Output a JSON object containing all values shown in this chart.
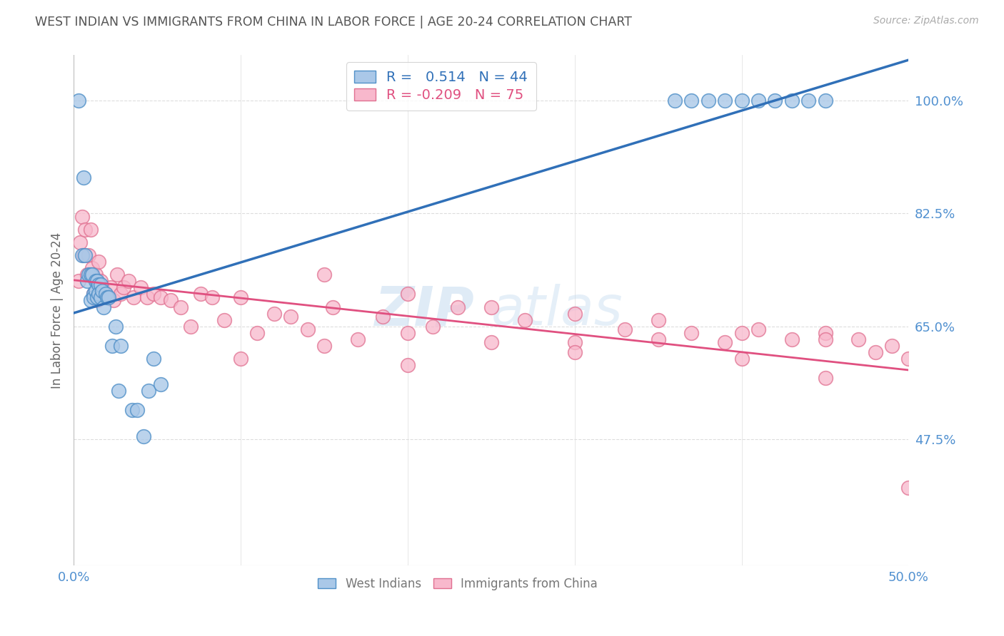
{
  "title": "WEST INDIAN VS IMMIGRANTS FROM CHINA IN LABOR FORCE | AGE 20-24 CORRELATION CHART",
  "source": "Source: ZipAtlas.com",
  "ylabel": "In Labor Force | Age 20-24",
  "ytick_labels": [
    "100.0%",
    "82.5%",
    "65.0%",
    "47.5%"
  ],
  "ytick_values": [
    1.0,
    0.825,
    0.65,
    0.475
  ],
  "xlim": [
    0.0,
    0.5
  ],
  "ylim": [
    0.28,
    1.07
  ],
  "watermark_line1": "ZIP",
  "watermark_line2": "atlas",
  "blue_R": "0.514",
  "blue_N": "44",
  "pink_R": "-0.209",
  "pink_N": "75",
  "blue_face_color": "#aac8e8",
  "blue_edge_color": "#5090c8",
  "blue_line_color": "#3070b8",
  "pink_face_color": "#f8b8cc",
  "pink_edge_color": "#e07090",
  "pink_line_color": "#e05080",
  "axis_label_color": "#5090d0",
  "title_color": "#555555",
  "source_color": "#aaaaaa",
  "grid_color": "#dddddd",
  "west_indians_x": [
    0.003,
    0.005,
    0.006,
    0.007,
    0.008,
    0.009,
    0.01,
    0.01,
    0.011,
    0.012,
    0.012,
    0.013,
    0.013,
    0.014,
    0.014,
    0.015,
    0.015,
    0.016,
    0.016,
    0.017,
    0.018,
    0.019,
    0.02,
    0.021,
    0.023,
    0.025,
    0.027,
    0.028,
    0.035,
    0.038,
    0.042,
    0.045,
    0.048,
    0.052,
    0.36,
    0.37,
    0.38,
    0.39,
    0.4,
    0.41,
    0.42,
    0.43,
    0.44,
    0.45
  ],
  "west_indians_y": [
    1.0,
    0.76,
    0.88,
    0.76,
    0.72,
    0.73,
    0.73,
    0.69,
    0.73,
    0.7,
    0.695,
    0.72,
    0.705,
    0.695,
    0.72,
    0.715,
    0.7,
    0.695,
    0.715,
    0.705,
    0.68,
    0.7,
    0.695,
    0.695,
    0.62,
    0.65,
    0.55,
    0.62,
    0.52,
    0.52,
    0.48,
    0.55,
    0.6,
    0.56,
    1.0,
    1.0,
    1.0,
    1.0,
    1.0,
    1.0,
    1.0,
    1.0,
    1.0,
    1.0
  ],
  "china_x": [
    0.003,
    0.004,
    0.005,
    0.006,
    0.007,
    0.008,
    0.009,
    0.01,
    0.011,
    0.012,
    0.013,
    0.014,
    0.015,
    0.016,
    0.017,
    0.018,
    0.019,
    0.02,
    0.022,
    0.024,
    0.026,
    0.028,
    0.03,
    0.033,
    0.036,
    0.04,
    0.044,
    0.048,
    0.052,
    0.058,
    0.064,
    0.07,
    0.076,
    0.083,
    0.09,
    0.1,
    0.11,
    0.12,
    0.13,
    0.14,
    0.155,
    0.17,
    0.185,
    0.2,
    0.215,
    0.23,
    0.25,
    0.27,
    0.3,
    0.33,
    0.35,
    0.37,
    0.39,
    0.41,
    0.43,
    0.45,
    0.47,
    0.49,
    0.15,
    0.2,
    0.25,
    0.3,
    0.35,
    0.4,
    0.45,
    0.48,
    0.5,
    0.1,
    0.15,
    0.2,
    0.3,
    0.4,
    0.45,
    0.5
  ],
  "china_y": [
    0.72,
    0.78,
    0.82,
    0.76,
    0.8,
    0.73,
    0.76,
    0.8,
    0.74,
    0.7,
    0.73,
    0.69,
    0.75,
    0.72,
    0.71,
    0.705,
    0.7,
    0.695,
    0.71,
    0.69,
    0.73,
    0.7,
    0.71,
    0.72,
    0.695,
    0.71,
    0.695,
    0.7,
    0.695,
    0.69,
    0.68,
    0.65,
    0.7,
    0.695,
    0.66,
    0.695,
    0.64,
    0.67,
    0.665,
    0.645,
    0.68,
    0.63,
    0.665,
    0.64,
    0.65,
    0.68,
    0.625,
    0.66,
    0.625,
    0.645,
    0.63,
    0.64,
    0.625,
    0.645,
    0.63,
    0.64,
    0.63,
    0.62,
    0.73,
    0.7,
    0.68,
    0.67,
    0.66,
    0.64,
    0.63,
    0.61,
    0.6,
    0.6,
    0.62,
    0.59,
    0.61,
    0.6,
    0.57,
    0.4
  ]
}
